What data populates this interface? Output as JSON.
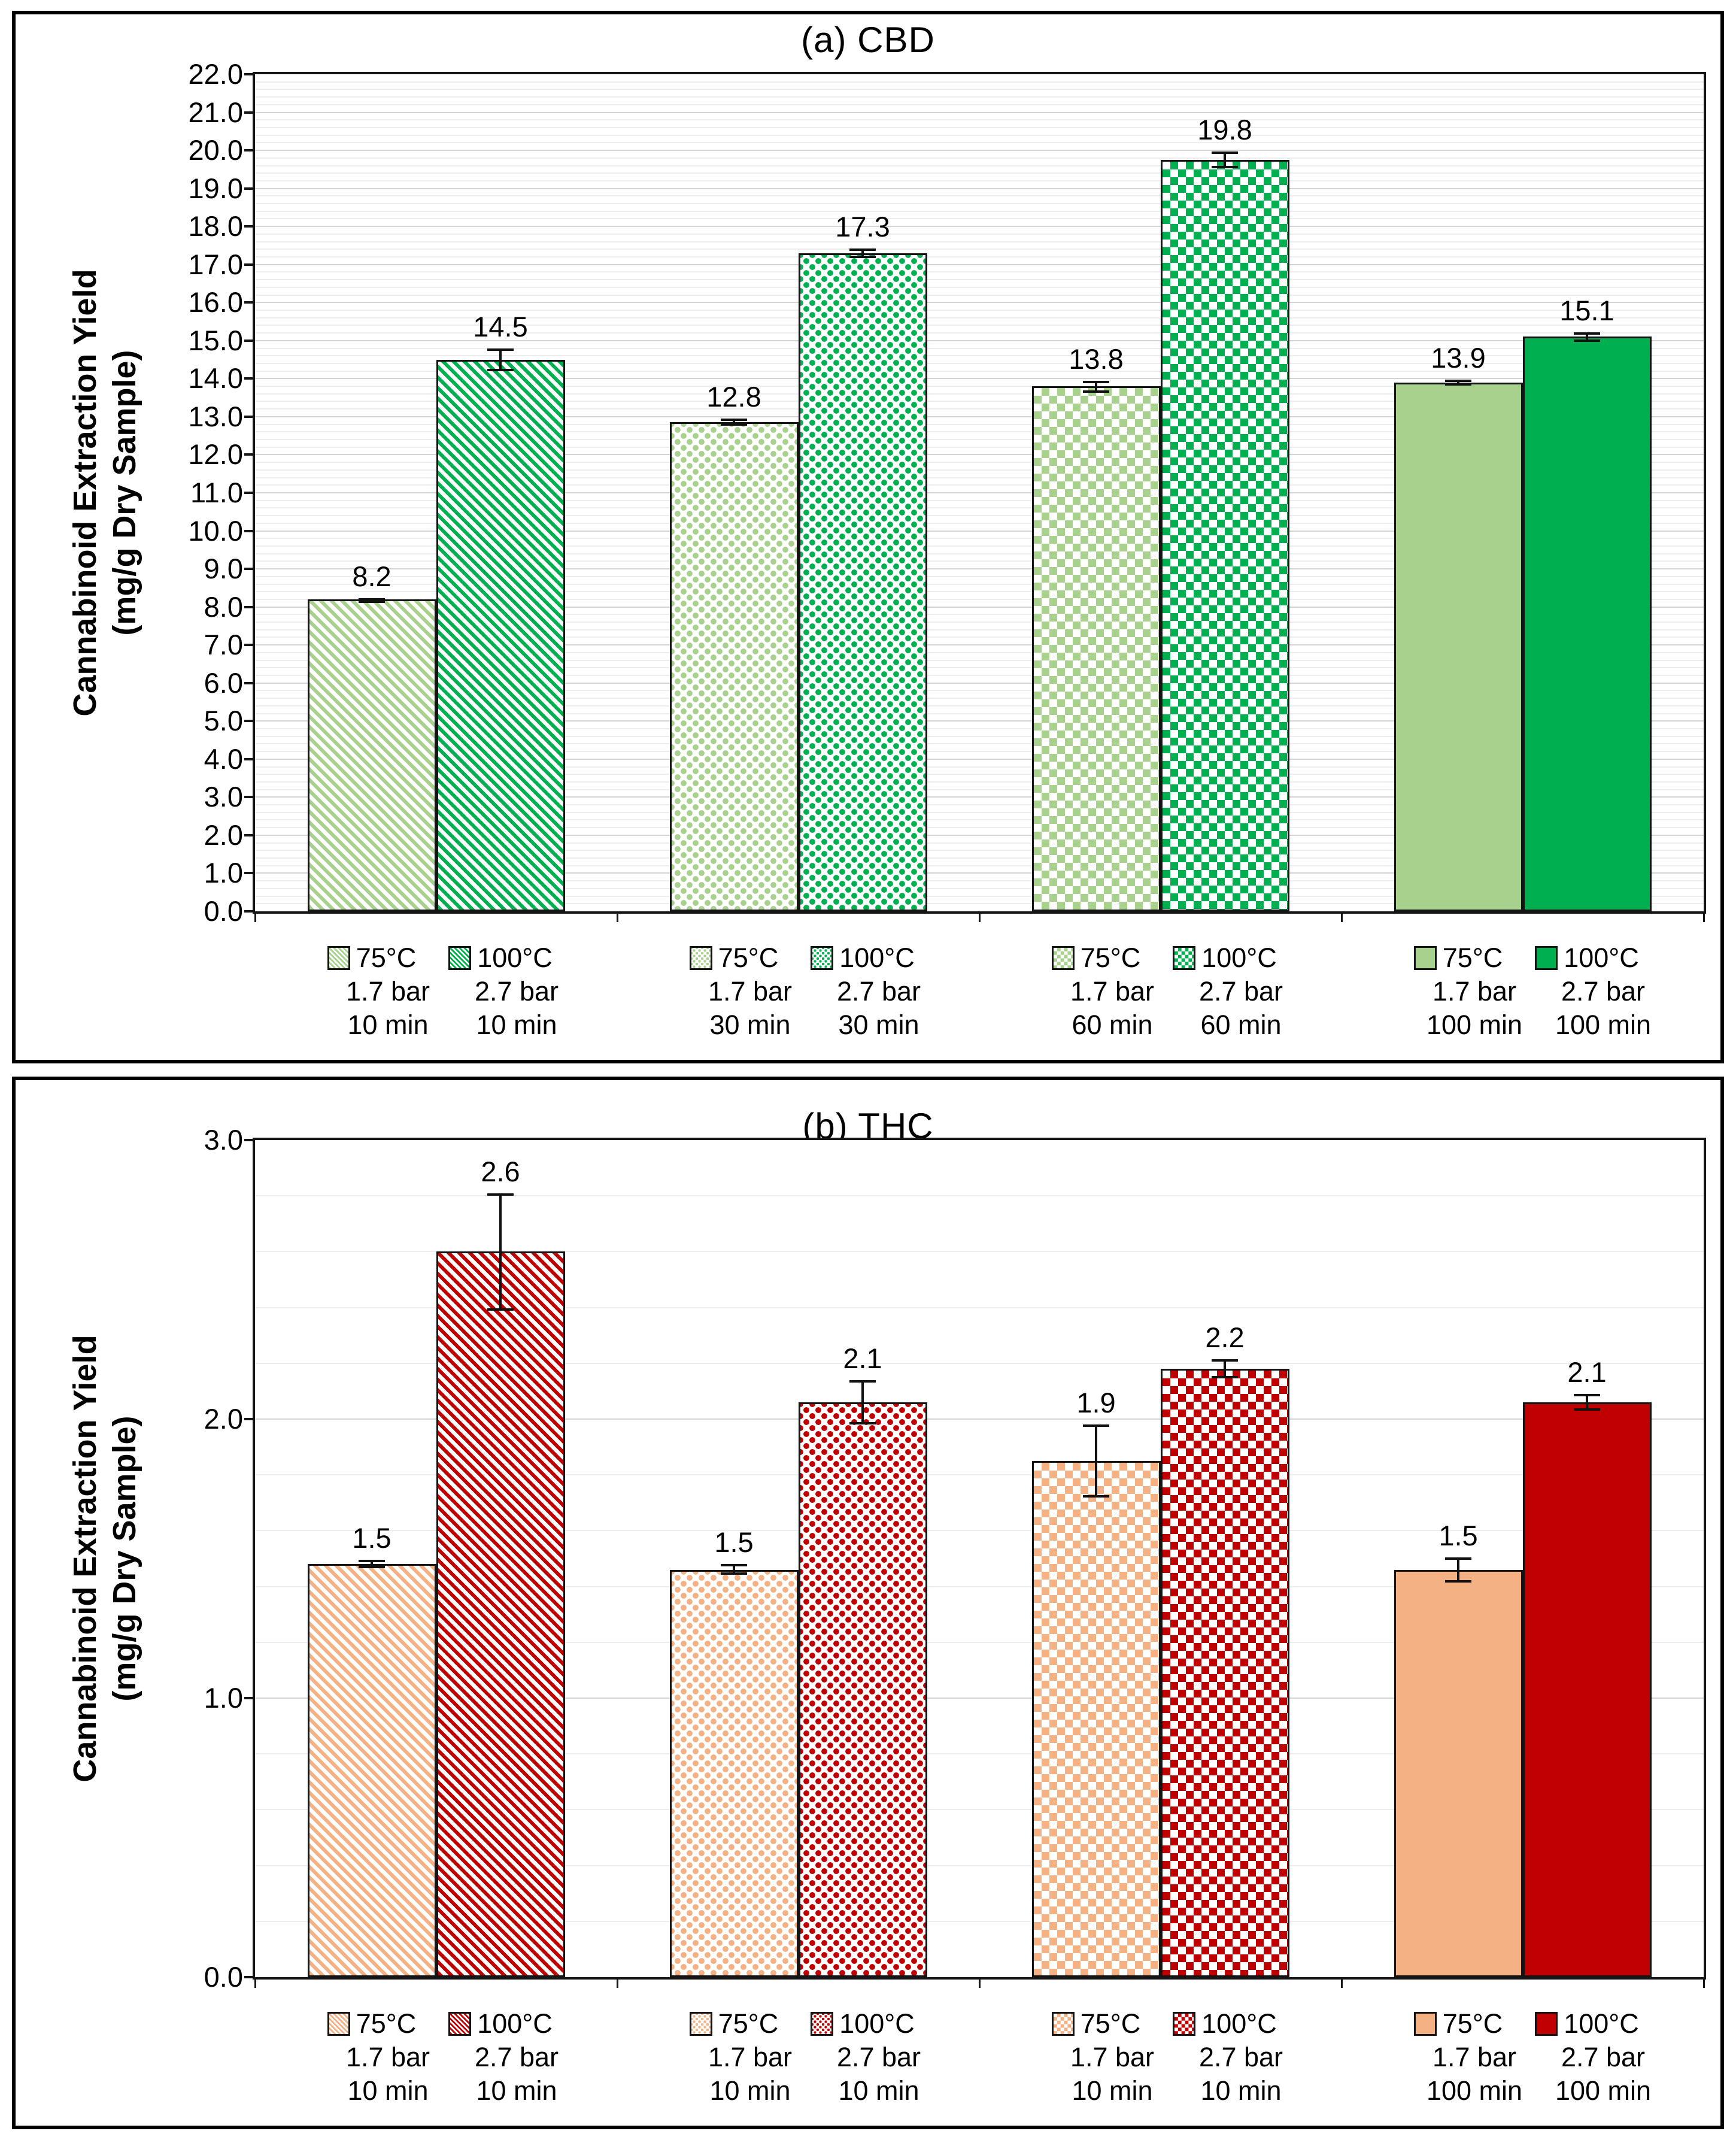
{
  "chart_data": [
    {
      "type": "bar",
      "title": "(a) CBD",
      "ylabel_line1": "Cannabinoid Extraction Yield",
      "ylabel_line2": "(mg/g Dry Sample)",
      "ylim": [
        0,
        22
      ],
      "ytick_step": 1.0,
      "yminor_step": 0.2,
      "grid": "on",
      "legend_position": "below-axis-per-bar",
      "ytick_labels": [
        "0.0",
        "1.0",
        "2.0",
        "3.0",
        "4.0",
        "5.0",
        "6.0",
        "7.0",
        "8.0",
        "9.0",
        "10.0",
        "11.0",
        "12.0",
        "13.0",
        "14.0",
        "15.0",
        "16.0",
        "17.0",
        "18.0",
        "19.0",
        "20.0",
        "21.0",
        "22.0"
      ],
      "colors": {
        "light": "#a9d18e",
        "dark": "#00b050",
        "bar_border": "#141414"
      },
      "bars": [
        {
          "temp": "75°C",
          "pressure": "1.7 bar",
          "time": "10 min",
          "pattern": "diag",
          "shade": "light",
          "value": 8.2,
          "label": "8.2",
          "error": 0.03
        },
        {
          "temp": "100°C",
          "pressure": "2.7 bar",
          "time": "10 min",
          "pattern": "diag",
          "shade": "dark",
          "value": 14.5,
          "label": "14.5",
          "error": 0.3
        },
        {
          "temp": "75°C",
          "pressure": "1.7 bar",
          "time": "30 min",
          "pattern": "dots",
          "shade": "light",
          "value": 12.85,
          "label": "12.8",
          "error": 0.1
        },
        {
          "temp": "100°C",
          "pressure": "2.7 bar",
          "time": "30 min",
          "pattern": "dots",
          "shade": "dark",
          "value": 17.3,
          "label": "17.3",
          "error": 0.12
        },
        {
          "temp": "75°C",
          "pressure": "1.7 bar",
          "time": "60 min",
          "pattern": "checker",
          "shade": "light",
          "value": 13.8,
          "label": "13.8",
          "error": 0.15
        },
        {
          "temp": "100°C",
          "pressure": "2.7 bar",
          "time": "60 min",
          "pattern": "checker",
          "shade": "dark",
          "value": 19.75,
          "label": "19.8",
          "error": 0.22
        },
        {
          "temp": "75°C",
          "pressure": "1.7 bar",
          "time": "100 min",
          "pattern": "solid",
          "shade": "light",
          "value": 13.9,
          "label": "13.9",
          "error": 0.08
        },
        {
          "temp": "100°C",
          "pressure": "2.7 bar",
          "time": "100 min",
          "pattern": "solid",
          "shade": "dark",
          "value": 15.1,
          "label": "15.1",
          "error": 0.12
        }
      ]
    },
    {
      "type": "bar",
      "title": "(b) THC",
      "ylabel_line1": "Cannabinoid Extraction Yield",
      "ylabel_line2": "(mg/g Dry Sample)",
      "ylim": [
        0,
        3
      ],
      "ytick_step": 1.0,
      "yminor_step": 0.2,
      "grid": "on",
      "legend_position": "below-axis-per-bar",
      "ytick_labels": [
        "0.0",
        "1.0",
        "2.0",
        "3.0"
      ],
      "colors": {
        "light": "#f4b183",
        "dark": "#c00000",
        "bar_border": "#141414"
      },
      "bars": [
        {
          "temp": "75°C",
          "pressure": "1.7 bar",
          "time": "10 min",
          "pattern": "diag",
          "shade": "light",
          "value": 1.48,
          "label": "1.5",
          "error": 0.015
        },
        {
          "temp": "100°C",
          "pressure": "2.7 bar",
          "time": "10 min",
          "pattern": "diag",
          "shade": "dark",
          "value": 2.6,
          "label": "2.6",
          "error": 0.21
        },
        {
          "temp": "75°C",
          "pressure": "1.7 bar",
          "time": "10 min",
          "pattern": "dots",
          "shade": "light",
          "value": 1.46,
          "label": "1.5",
          "error": 0.02
        },
        {
          "temp": "100°C",
          "pressure": "2.7 bar",
          "time": "10 min",
          "pattern": "dots",
          "shade": "dark",
          "value": 2.06,
          "label": "2.1",
          "error": 0.08
        },
        {
          "temp": "75°C",
          "pressure": "1.7 bar",
          "time": "10 min",
          "pattern": "checker",
          "shade": "light",
          "value": 1.85,
          "label": "1.9",
          "error": 0.13
        },
        {
          "temp": "100°C",
          "pressure": "2.7 bar",
          "time": "10 min",
          "pattern": "checker",
          "shade": "dark",
          "value": 2.18,
          "label": "2.2",
          "error": 0.035
        },
        {
          "temp": "75°C",
          "pressure": "1.7 bar",
          "time": "100 min",
          "pattern": "solid",
          "shade": "light",
          "value": 1.46,
          "label": "1.5",
          "error": 0.045
        },
        {
          "temp": "100°C",
          "pressure": "2.7 bar",
          "time": "100 min",
          "pattern": "solid",
          "shade": "dark",
          "value": 2.06,
          "label": "2.1",
          "error": 0.03
        }
      ]
    }
  ]
}
